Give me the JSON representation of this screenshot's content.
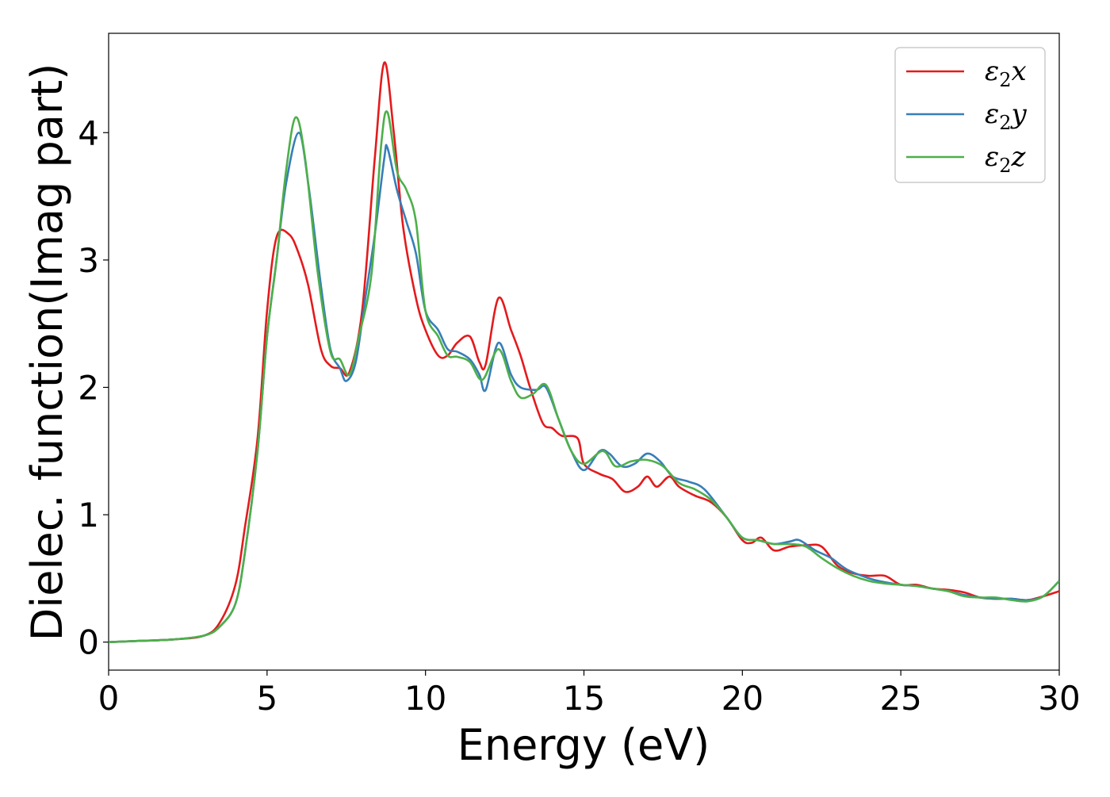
{
  "chart_data": {
    "type": "line",
    "xlabel": "Energy (eV)",
    "ylabel": "Dielec. function(Imag part)",
    "xlim": [
      0,
      30
    ],
    "ylim": [
      -0.22,
      4.78
    ],
    "xticks": [
      0,
      5,
      10,
      15,
      20,
      25,
      30
    ],
    "yticks": [
      0,
      1,
      2,
      3,
      4
    ],
    "grid": false,
    "legend_position": "top-right",
    "series": [
      {
        "name": "ε₂x",
        "legend_base": "ε",
        "legend_sub": "2",
        "legend_suffix": "x",
        "color": "#e41a1c",
        "points": [
          [
            0,
            0
          ],
          [
            1,
            0.01
          ],
          [
            2,
            0.02
          ],
          [
            3,
            0.05
          ],
          [
            3.5,
            0.15
          ],
          [
            4,
            0.45
          ],
          [
            4.3,
            0.9
          ],
          [
            4.7,
            1.6
          ],
          [
            5.0,
            2.6
          ],
          [
            5.3,
            3.18
          ],
          [
            5.7,
            3.2
          ],
          [
            6.0,
            3.05
          ],
          [
            6.3,
            2.8
          ],
          [
            6.7,
            2.3
          ],
          [
            7.0,
            2.17
          ],
          [
            7.3,
            2.15
          ],
          [
            7.6,
            2.12
          ],
          [
            8.0,
            2.6
          ],
          [
            8.4,
            3.8
          ],
          [
            8.7,
            4.55
          ],
          [
            9.0,
            4.0
          ],
          [
            9.3,
            3.25
          ],
          [
            9.7,
            2.7
          ],
          [
            10.0,
            2.45
          ],
          [
            10.4,
            2.25
          ],
          [
            10.7,
            2.25
          ],
          [
            11.0,
            2.35
          ],
          [
            11.4,
            2.4
          ],
          [
            11.7,
            2.2
          ],
          [
            11.9,
            2.18
          ],
          [
            12.3,
            2.7
          ],
          [
            12.7,
            2.45
          ],
          [
            13.0,
            2.25
          ],
          [
            13.3,
            2.0
          ],
          [
            13.7,
            1.72
          ],
          [
            14.0,
            1.68
          ],
          [
            14.3,
            1.62
          ],
          [
            14.8,
            1.6
          ],
          [
            15.0,
            1.4
          ],
          [
            15.5,
            1.32
          ],
          [
            15.9,
            1.28
          ],
          [
            16.3,
            1.18
          ],
          [
            16.7,
            1.22
          ],
          [
            17.0,
            1.3
          ],
          [
            17.3,
            1.22
          ],
          [
            17.7,
            1.3
          ],
          [
            18.0,
            1.22
          ],
          [
            18.5,
            1.15
          ],
          [
            19.0,
            1.1
          ],
          [
            19.5,
            0.98
          ],
          [
            20.0,
            0.8
          ],
          [
            20.3,
            0.78
          ],
          [
            20.6,
            0.82
          ],
          [
            21.0,
            0.72
          ],
          [
            21.5,
            0.75
          ],
          [
            22.0,
            0.76
          ],
          [
            22.5,
            0.75
          ],
          [
            23.0,
            0.6
          ],
          [
            23.5,
            0.54
          ],
          [
            24.0,
            0.52
          ],
          [
            24.5,
            0.52
          ],
          [
            25.0,
            0.45
          ],
          [
            25.5,
            0.45
          ],
          [
            26.0,
            0.42
          ],
          [
            26.5,
            0.41
          ],
          [
            27.0,
            0.39
          ],
          [
            27.5,
            0.35
          ],
          [
            28.0,
            0.34
          ],
          [
            28.5,
            0.34
          ],
          [
            29.0,
            0.33
          ],
          [
            29.5,
            0.36
          ],
          [
            30.0,
            0.4
          ]
        ]
      },
      {
        "name": "ε₂y",
        "legend_base": "ε",
        "legend_sub": "2",
        "legend_suffix": "y",
        "color": "#377eb8",
        "points": [
          [
            0,
            0
          ],
          [
            1,
            0.01
          ],
          [
            2,
            0.02
          ],
          [
            3,
            0.05
          ],
          [
            3.5,
            0.12
          ],
          [
            4,
            0.3
          ],
          [
            4.3,
            0.7
          ],
          [
            4.7,
            1.5
          ],
          [
            5.0,
            2.4
          ],
          [
            5.3,
            3.0
          ],
          [
            5.6,
            3.6
          ],
          [
            6.0,
            4.0
          ],
          [
            6.3,
            3.6
          ],
          [
            6.7,
            2.8
          ],
          [
            7.0,
            2.3
          ],
          [
            7.3,
            2.15
          ],
          [
            7.5,
            2.05
          ],
          [
            7.8,
            2.2
          ],
          [
            8.1,
            2.7
          ],
          [
            8.4,
            3.2
          ],
          [
            8.7,
            3.8
          ],
          [
            8.8,
            3.88
          ],
          [
            9.1,
            3.55
          ],
          [
            9.4,
            3.3
          ],
          [
            9.7,
            3.05
          ],
          [
            10.0,
            2.6
          ],
          [
            10.4,
            2.45
          ],
          [
            10.7,
            2.3
          ],
          [
            11.0,
            2.28
          ],
          [
            11.4,
            2.22
          ],
          [
            11.7,
            2.1
          ],
          [
            11.9,
            1.98
          ],
          [
            12.3,
            2.35
          ],
          [
            12.7,
            2.1
          ],
          [
            13.0,
            2.0
          ],
          [
            13.5,
            1.98
          ],
          [
            13.8,
            2.0
          ],
          [
            14.2,
            1.75
          ],
          [
            14.6,
            1.5
          ],
          [
            15.0,
            1.35
          ],
          [
            15.5,
            1.5
          ],
          [
            15.8,
            1.48
          ],
          [
            16.2,
            1.38
          ],
          [
            16.6,
            1.4
          ],
          [
            17.0,
            1.48
          ],
          [
            17.4,
            1.42
          ],
          [
            17.8,
            1.3
          ],
          [
            18.3,
            1.26
          ],
          [
            18.8,
            1.2
          ],
          [
            19.5,
            0.98
          ],
          [
            20.0,
            0.82
          ],
          [
            20.5,
            0.8
          ],
          [
            21.0,
            0.77
          ],
          [
            21.5,
            0.79
          ],
          [
            21.8,
            0.8
          ],
          [
            22.3,
            0.72
          ],
          [
            22.8,
            0.66
          ],
          [
            23.3,
            0.57
          ],
          [
            24.0,
            0.5
          ],
          [
            24.5,
            0.47
          ],
          [
            25.0,
            0.45
          ],
          [
            25.5,
            0.44
          ],
          [
            26.0,
            0.42
          ],
          [
            26.5,
            0.4
          ],
          [
            27.0,
            0.37
          ],
          [
            27.5,
            0.35
          ],
          [
            28.0,
            0.34
          ],
          [
            28.5,
            0.34
          ],
          [
            29.0,
            0.33
          ],
          [
            29.5,
            0.36
          ],
          [
            30.0,
            0.48
          ]
        ]
      },
      {
        "name": "ε₂z",
        "legend_base": "ε",
        "legend_sub": "2",
        "legend_suffix": "z",
        "color": "#4daf4a",
        "points": [
          [
            0,
            0
          ],
          [
            1,
            0.01
          ],
          [
            2,
            0.02
          ],
          [
            3,
            0.05
          ],
          [
            3.5,
            0.12
          ],
          [
            4,
            0.3
          ],
          [
            4.3,
            0.7
          ],
          [
            4.7,
            1.5
          ],
          [
            5.0,
            2.4
          ],
          [
            5.3,
            3.0
          ],
          [
            5.6,
            3.7
          ],
          [
            5.9,
            4.12
          ],
          [
            6.2,
            3.8
          ],
          [
            6.6,
            2.9
          ],
          [
            7.0,
            2.28
          ],
          [
            7.3,
            2.22
          ],
          [
            7.6,
            2.1
          ],
          [
            7.9,
            2.4
          ],
          [
            8.3,
            2.9
          ],
          [
            8.6,
            3.9
          ],
          [
            8.8,
            4.16
          ],
          [
            9.1,
            3.7
          ],
          [
            9.4,
            3.55
          ],
          [
            9.7,
            3.3
          ],
          [
            10.0,
            2.6
          ],
          [
            10.4,
            2.4
          ],
          [
            10.7,
            2.25
          ],
          [
            11.0,
            2.24
          ],
          [
            11.4,
            2.2
          ],
          [
            11.8,
            2.06
          ],
          [
            12.3,
            2.3
          ],
          [
            12.7,
            2.05
          ],
          [
            13.0,
            1.92
          ],
          [
            13.4,
            1.95
          ],
          [
            13.8,
            2.02
          ],
          [
            14.2,
            1.75
          ],
          [
            14.6,
            1.5
          ],
          [
            15.0,
            1.4
          ],
          [
            15.6,
            1.5
          ],
          [
            16.0,
            1.38
          ],
          [
            16.5,
            1.42
          ],
          [
            17.0,
            1.43
          ],
          [
            17.5,
            1.38
          ],
          [
            18.0,
            1.25
          ],
          [
            18.5,
            1.2
          ],
          [
            19.0,
            1.12
          ],
          [
            19.5,
            0.98
          ],
          [
            20.0,
            0.82
          ],
          [
            20.5,
            0.8
          ],
          [
            21.0,
            0.77
          ],
          [
            21.5,
            0.77
          ],
          [
            22.0,
            0.75
          ],
          [
            22.5,
            0.66
          ],
          [
            23.0,
            0.58
          ],
          [
            23.5,
            0.52
          ],
          [
            24.0,
            0.48
          ],
          [
            24.5,
            0.46
          ],
          [
            25.0,
            0.45
          ],
          [
            25.5,
            0.44
          ],
          [
            26.0,
            0.42
          ],
          [
            26.5,
            0.4
          ],
          [
            27.0,
            0.36
          ],
          [
            27.5,
            0.35
          ],
          [
            28.0,
            0.35
          ],
          [
            28.5,
            0.33
          ],
          [
            29.0,
            0.32
          ],
          [
            29.5,
            0.36
          ],
          [
            30.0,
            0.48
          ]
        ]
      }
    ]
  }
}
